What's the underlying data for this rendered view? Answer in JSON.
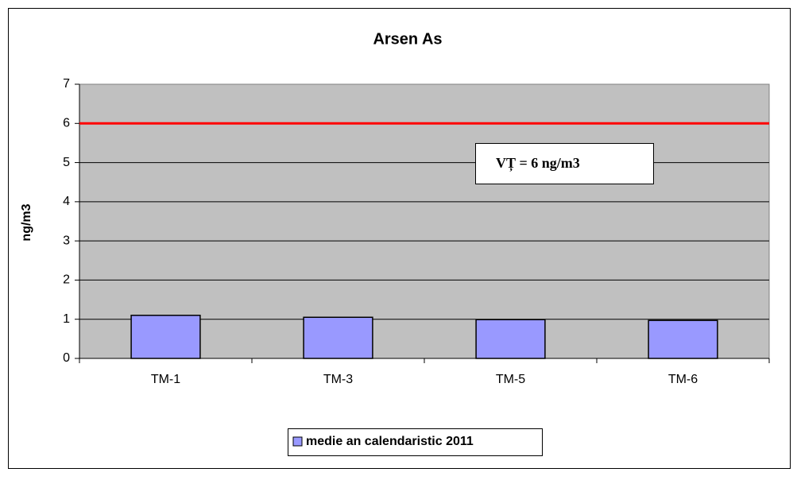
{
  "chart_data": {
    "type": "bar",
    "title": "Arsen As",
    "y_label": "ng/m3",
    "categories": [
      "TM-1",
      "TM-3",
      "TM-5",
      "TM-6"
    ],
    "series": [
      {
        "name": "medie an calendaristic 2011",
        "color": "#9999ff",
        "values": [
          1.1,
          1.05,
          0.99,
          0.97
        ]
      }
    ],
    "ylim": [
      0,
      7
    ],
    "yticks": [
      0,
      1,
      2,
      3,
      4,
      5,
      6,
      7
    ],
    "grid": true,
    "threshold": {
      "value": 6,
      "color": "#ff0000",
      "label": "VȚ = 6 ng/m3"
    },
    "legend": "bottom"
  }
}
